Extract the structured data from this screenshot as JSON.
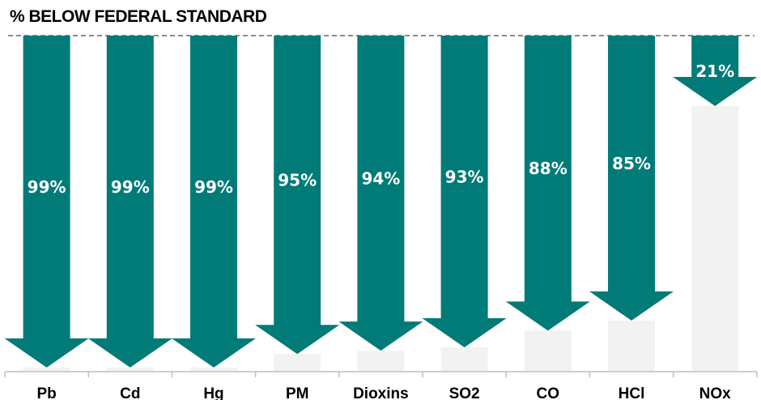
{
  "chart_data": {
    "type": "bar",
    "title": "% BELOW FEDERAL STANDARD",
    "categories": [
      "Pb",
      "Cd",
      "Hg",
      "PM",
      "Dioxins",
      "SO2",
      "CO",
      "HCl",
      "NOx"
    ],
    "values": [
      99,
      99,
      99,
      95,
      94,
      93,
      88,
      85,
      21
    ],
    "value_labels": [
      "99%",
      "99%",
      "99%",
      "95%",
      "94%",
      "93%",
      "88%",
      "85%",
      "21%"
    ],
    "ylim": [
      0,
      100
    ],
    "colors": {
      "arrow": "#007B78",
      "remainder": "#F2F2F2",
      "reference_line": "#8C8C8C",
      "text": "#000000",
      "value_text": "#FFFFFF"
    }
  }
}
